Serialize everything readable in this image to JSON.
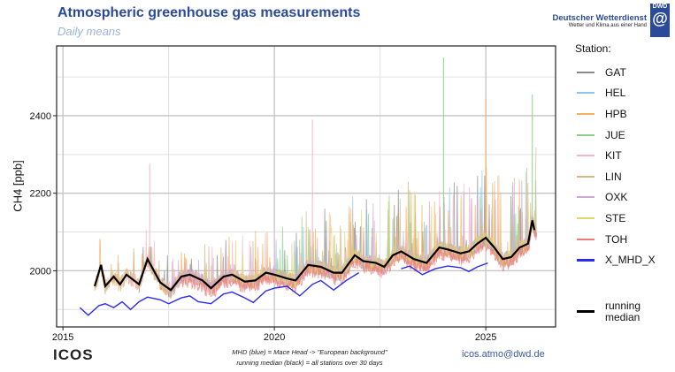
{
  "header": {
    "title": "Atmospheric greenhouse gas measurements",
    "subtitle": "Daily means"
  },
  "logo": {
    "name": "Deutscher Wetterdienst",
    "tagline": "Wetter und Klima aus einer Hand",
    "mark": "DWD"
  },
  "footer": {
    "icos": "ICOS",
    "note1": "MHD (blue) = Mace Head -> \"European background\"",
    "note2": "running median (black) = all stations over 30 days",
    "email": "icos.atmo@dwd.de"
  },
  "chart_data": {
    "type": "line",
    "ylabel": "CH4 [ppb]",
    "xlim": [
      2014.85,
      2026.65
    ],
    "ylim": [
      1855,
      2580
    ],
    "xticks": [
      2015,
      2020,
      2025
    ],
    "yticks": [
      2000,
      2200,
      2400
    ],
    "grid": true,
    "legend_title": "Station:",
    "legend_placement": "right",
    "stations": [
      {
        "name": "GAT",
        "color": "#8a8a8a",
        "start": 2016.8,
        "end": 2026.2
      },
      {
        "name": "HEL",
        "color": "#8ec6ef",
        "start": 2019.5,
        "end": 2026.2
      },
      {
        "name": "HPB",
        "color": "#f5b060",
        "start": 2015.75,
        "end": 2026.2
      },
      {
        "name": "JUE",
        "color": "#8fd08f",
        "start": 2019.8,
        "end": 2026.2
      },
      {
        "name": "KIT",
        "color": "#f5b5c8",
        "start": 2016.5,
        "end": 2026.2
      },
      {
        "name": "LIN",
        "color": "#d4b888",
        "start": 2015.75,
        "end": 2026.2
      },
      {
        "name": "OXK",
        "color": "#d0a8d8",
        "start": 2017.5,
        "end": 2026.2
      },
      {
        "name": "STE",
        "color": "#e4d46a",
        "start": 2019.0,
        "end": 2026.2
      },
      {
        "name": "TOH",
        "color": "#f07a7a",
        "start": 2017.8,
        "end": 2026.2
      }
    ],
    "mhd": {
      "name": "X_MHD_X",
      "color": "#2a2af0",
      "segments": [
        [
          [
            2015.4,
            1905
          ],
          [
            2015.6,
            1885
          ],
          [
            2015.85,
            1910
          ],
          [
            2016.0,
            1915
          ],
          [
            2016.2,
            1905
          ],
          [
            2016.4,
            1920
          ],
          [
            2016.6,
            1900
          ],
          [
            2016.8,
            1920
          ],
          [
            2017.0,
            1932
          ],
          [
            2017.3,
            1925
          ],
          [
            2017.5,
            1915
          ],
          [
            2017.8,
            1930
          ],
          [
            2018.0,
            1935
          ],
          [
            2018.2,
            1920
          ],
          [
            2018.5,
            1915
          ],
          [
            2018.8,
            1940
          ],
          [
            2019.0,
            1945
          ],
          [
            2019.3,
            1930
          ],
          [
            2019.5,
            1918
          ],
          [
            2019.8,
            1948
          ],
          [
            2020.0,
            1955
          ],
          [
            2020.3,
            1960
          ],
          [
            2020.6,
            1935
          ],
          [
            2020.9,
            1965
          ],
          [
            2021.1,
            1975
          ],
          [
            2021.4,
            1950
          ],
          [
            2021.7,
            1975
          ],
          [
            2022.0,
            1995
          ]
        ],
        [
          [
            2023.0,
            2005
          ],
          [
            2023.2,
            2012
          ],
          [
            2023.5,
            1990
          ],
          [
            2023.8,
            2005
          ],
          [
            2024.1,
            2012
          ],
          [
            2024.4,
            2008
          ],
          [
            2024.6,
            1998
          ],
          [
            2024.8,
            2010
          ],
          [
            2025.05,
            2020
          ]
        ]
      ]
    },
    "running_median": {
      "name": "running median",
      "color": "#000000",
      "points": [
        [
          2015.75,
          1960
        ],
        [
          2015.9,
          2015
        ],
        [
          2016.0,
          1960
        ],
        [
          2016.2,
          1985
        ],
        [
          2016.35,
          1965
        ],
        [
          2016.5,
          1990
        ],
        [
          2016.8,
          1965
        ],
        [
          2017.0,
          2030
        ],
        [
          2017.3,
          1970
        ],
        [
          2017.55,
          1950
        ],
        [
          2017.8,
          1985
        ],
        [
          2018.0,
          1990
        ],
        [
          2018.3,
          1975
        ],
        [
          2018.5,
          1955
        ],
        [
          2018.8,
          1985
        ],
        [
          2019.0,
          1990
        ],
        [
          2019.3,
          1972
        ],
        [
          2019.55,
          1975
        ],
        [
          2019.8,
          1995
        ],
        [
          2020.0,
          1990
        ],
        [
          2020.3,
          1980
        ],
        [
          2020.5,
          1975
        ],
        [
          2020.8,
          2015
        ],
        [
          2021.1,
          2010
        ],
        [
          2021.4,
          1995
        ],
        [
          2021.6,
          1995
        ],
        [
          2021.9,
          2040
        ],
        [
          2022.1,
          2025
        ],
        [
          2022.4,
          2020
        ],
        [
          2022.6,
          2010
        ],
        [
          2022.8,
          2040
        ],
        [
          2023.0,
          2050
        ],
        [
          2023.3,
          2030
        ],
        [
          2023.6,
          2020
        ],
        [
          2023.9,
          2060
        ],
        [
          2024.1,
          2055
        ],
        [
          2024.4,
          2045
        ],
        [
          2024.6,
          2050
        ],
        [
          2024.8,
          2070
        ],
        [
          2025.0,
          2085
        ],
        [
          2025.2,
          2060
        ],
        [
          2025.4,
          2030
        ],
        [
          2025.6,
          2035
        ],
        [
          2025.8,
          2060
        ],
        [
          2026.0,
          2070
        ],
        [
          2026.1,
          2130
        ],
        [
          2026.15,
          2105
        ]
      ]
    },
    "median_label": "running\nmedian"
  }
}
